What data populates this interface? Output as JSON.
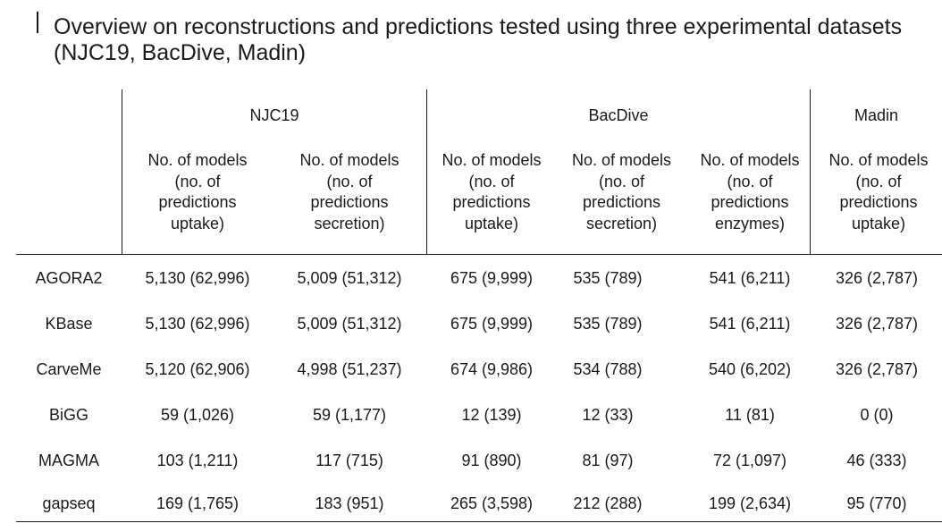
{
  "title": "Overview on reconstructions and predictions tested using three experimental datasets (NJC19, BacDive, Madin)",
  "groups": [
    {
      "label": "NJC19"
    },
    {
      "label": "BacDive"
    },
    {
      "label": "Madin"
    }
  ],
  "columns": [
    {
      "l1": "No. of models",
      "l2": "(no. of",
      "l3": "predictions",
      "l4": "uptake)"
    },
    {
      "l1": "No. of models",
      "l2": "(no. of",
      "l3": "predictions",
      "l4": "secretion)"
    },
    {
      "l1": "No. of models",
      "l2": "(no. of",
      "l3": "predictions",
      "l4": "uptake)"
    },
    {
      "l1": "No. of models",
      "l2": "(no. of",
      "l3": "predictions",
      "l4": "secretion)"
    },
    {
      "l1": "No. of models",
      "l2": "(no. of",
      "l3": "predictions",
      "l4": "enzymes)"
    },
    {
      "l1": "No. of models",
      "l2": "(no. of",
      "l3": "predictions",
      "l4": "uptake)"
    }
  ],
  "rows": [
    {
      "label": "AGORA2",
      "cells": [
        "5,130 (62,996)",
        "5,009 (51,312)",
        "675 (9,999)",
        "535 (789)",
        "541 (6,211)",
        "326 (2,787)"
      ]
    },
    {
      "label": "KBase",
      "cells": [
        "5,130 (62,996)",
        "5,009 (51,312)",
        "675 (9,999)",
        "535 (789)",
        "541 (6,211)",
        "326 (2,787)"
      ]
    },
    {
      "label": "CarveMe",
      "cells": [
        "5,120 (62,906)",
        "4,998 (51,237)",
        "674 (9,986)",
        "534 (788)",
        "540 (6,202)",
        "326 (2,787)"
      ]
    },
    {
      "label": "BiGG",
      "cells": [
        "59 (1,026)",
        "59 (1,177)",
        "12 (139)",
        "12 (33)",
        "11 (81)",
        "0 (0)"
      ]
    },
    {
      "label": "MAGMA",
      "cells": [
        "103 (1,211)",
        "117 (715)",
        "91 (890)",
        "81 (97)",
        "72 (1,097)",
        "46 (333)"
      ]
    },
    {
      "label": "gapseq",
      "cells": [
        "169 (1,765)",
        "183 (951)",
        "265 (3,598)",
        "212 (288)",
        "199 (2,634)",
        "95 (770)"
      ]
    }
  ]
}
